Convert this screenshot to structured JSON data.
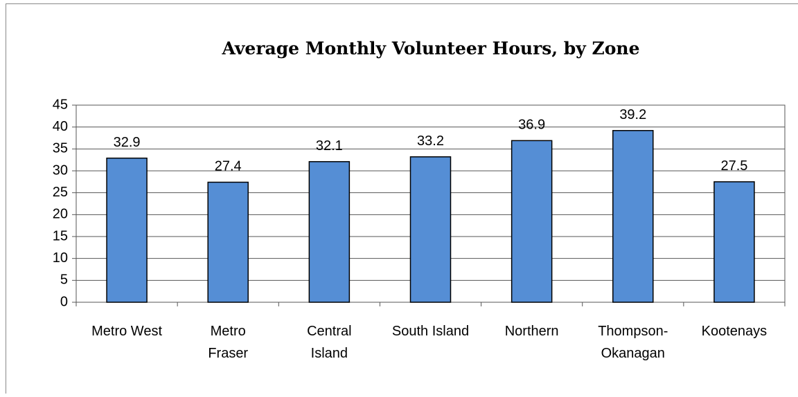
{
  "chart_data": {
    "type": "bar",
    "title": "Average Monthly Volunteer Hours, by Zone",
    "categories": [
      [
        "Metro West"
      ],
      [
        "Metro",
        "Fraser"
      ],
      [
        "Central",
        "Island"
      ],
      [
        "South Island"
      ],
      [
        "Northern"
      ],
      [
        "Thompson-",
        "Okanagan"
      ],
      [
        "Kootenays"
      ]
    ],
    "values": [
      32.9,
      27.4,
      32.1,
      33.2,
      36.9,
      39.2,
      27.5
    ],
    "color": "#558ed5",
    "ylim": [
      0,
      45
    ],
    "yticks": [
      0,
      5,
      10,
      15,
      20,
      25,
      30,
      35,
      40,
      45
    ],
    "grid": true
  }
}
